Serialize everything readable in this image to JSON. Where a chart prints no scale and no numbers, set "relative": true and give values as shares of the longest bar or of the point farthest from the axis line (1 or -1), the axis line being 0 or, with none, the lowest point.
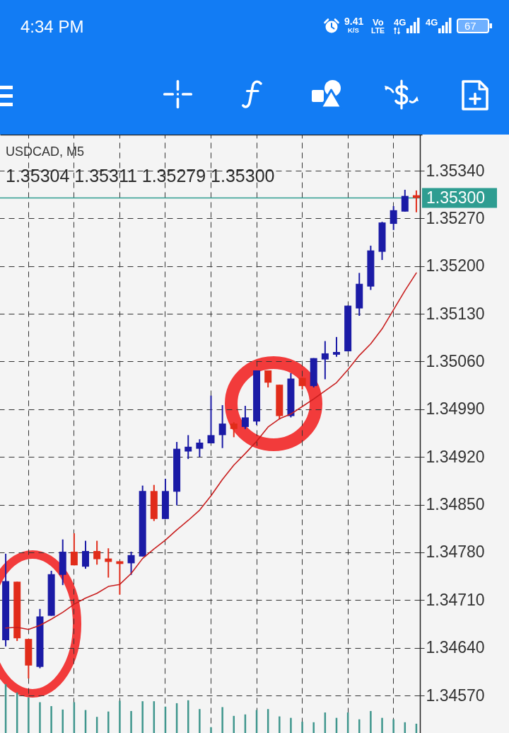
{
  "chart_data": [
    {
      "type": "candlestick",
      "title": "USDCAD, M5",
      "subtitle": "1.35304 1.35311 1.35279 1.35300",
      "categories": [
        null,
        null,
        null,
        null,
        null,
        null,
        null,
        null,
        null,
        null,
        null,
        null,
        null,
        null,
        null,
        null,
        null,
        null,
        null,
        null,
        null,
        null,
        null,
        null,
        null,
        null,
        null,
        null,
        null,
        null,
        null,
        null,
        null,
        null,
        null,
        null,
        null
      ],
      "ohlc": [
        [
          1.34651,
          1.34778,
          1.34642,
          1.34738
        ],
        [
          1.34737,
          1.34737,
          1.3465,
          1.34654
        ],
        [
          1.34653,
          1.34653,
          1.34595,
          1.34614
        ],
        [
          1.34612,
          1.34697,
          1.3461,
          1.34686
        ],
        [
          1.34687,
          1.34753,
          1.34687,
          1.34748
        ],
        [
          1.34747,
          1.34799,
          1.34732,
          1.34781
        ],
        [
          1.34781,
          1.34808,
          1.34761,
          1.34761
        ],
        [
          1.34759,
          1.34797,
          1.34756,
          1.34782
        ],
        [
          1.34782,
          1.34797,
          1.34762,
          1.3477
        ],
        [
          1.34771,
          1.34786,
          1.34743,
          1.34766
        ],
        [
          1.34767,
          1.34767,
          1.34718,
          1.34763
        ],
        [
          1.34764,
          1.34781,
          1.34747,
          1.34776
        ],
        [
          1.34774,
          1.34878,
          1.34774,
          1.3487
        ],
        [
          1.3487,
          1.34879,
          1.34826,
          1.34829
        ],
        [
          1.34829,
          1.34888,
          1.34829,
          1.3487
        ],
        [
          1.34869,
          1.34942,
          1.34849,
          1.34932
        ],
        [
          1.34928,
          1.34952,
          1.34917,
          1.34935
        ],
        [
          1.34932,
          1.34946,
          1.3492,
          1.34941
        ],
        [
          1.3494,
          1.3501,
          1.3494,
          1.34952
        ],
        [
          1.34952,
          1.34996,
          1.34933,
          1.34969
        ],
        [
          1.34969,
          1.34971,
          1.34949,
          1.34961
        ],
        [
          1.34964,
          1.34995,
          1.34961,
          1.34978
        ],
        [
          1.34972,
          1.35047,
          1.34967,
          1.35047
        ],
        [
          1.35047,
          1.35047,
          1.35022,
          1.35029
        ],
        [
          1.35026,
          1.35026,
          1.34975,
          1.3498
        ],
        [
          1.3498,
          1.35043,
          1.34978,
          1.35035
        ],
        [
          1.35036,
          1.35036,
          1.35019,
          1.35024
        ],
        [
          1.35024,
          1.35065,
          1.35022,
          1.35065
        ],
        [
          1.35063,
          1.3509,
          1.35034,
          1.35072
        ],
        [
          1.3507,
          1.35096,
          1.35067,
          1.35074
        ],
        [
          1.35075,
          1.35142,
          1.35075,
          1.35142
        ],
        [
          1.35138,
          1.3519,
          1.35127,
          1.35174
        ],
        [
          1.3517,
          1.3523,
          1.35165,
          1.35223
        ],
        [
          1.35221,
          1.35265,
          1.35209,
          1.35264
        ],
        [
          1.35262,
          1.35288,
          1.35253,
          1.35282
        ],
        [
          1.3528,
          1.35312,
          1.3528,
          1.35303
        ],
        [
          1.35304,
          1.35311,
          1.35279,
          1.353
        ]
      ],
      "colors": [
        "#1b1ba6",
        "#e12c1a",
        "#e12c1a",
        "#1b1ba6",
        "#1b1ba6",
        "#1b1ba6",
        "#e12c1a",
        "#1b1ba6",
        "#e12c1a",
        "#e12c1a",
        "#e12c1a",
        "#1b1ba6",
        "#1b1ba6",
        "#e12c1a",
        "#1b1ba6",
        "#1b1ba6",
        "#1b1ba6",
        "#1b1ba6",
        "#1b1ba6",
        "#1b1ba6",
        "#e12c1a",
        "#1b1ba6",
        "#1b1ba6",
        "#e12c1a",
        "#e12c1a",
        "#1b1ba6",
        "#e12c1a",
        "#1b1ba6",
        "#1b1ba6",
        "#1b1ba6",
        "#1b1ba6",
        "#1b1ba6",
        "#1b1ba6",
        "#1b1ba6",
        "#1b1ba6",
        "#1b1ba6",
        "#e12c1a"
      ],
      "series": [
        {
          "type": "line",
          "color": "#c81e1e",
          "values": [
            1.34669,
            1.3467,
            1.34667,
            1.34673,
            1.34682,
            1.34692,
            1.34704,
            1.34713,
            1.3472,
            1.3473,
            1.34733,
            1.34749,
            1.34771,
            1.34785,
            1.34798,
            1.34813,
            1.34827,
            1.34842,
            1.34863,
            1.34887,
            1.34908,
            1.34925,
            1.34943,
            1.34964,
            1.34976,
            1.34983,
            1.34994,
            1.35005,
            1.35017,
            1.35029,
            1.35048,
            1.35069,
            1.35086,
            1.35108,
            1.35136,
            1.35164,
            1.3519
          ]
        }
      ],
      "ylim": [
        1.34515,
        1.35393
      ],
      "yticks": [
        {
          "value": 1.3457,
          "label": "1.34570"
        },
        {
          "value": 1.3464,
          "label": "1.34640"
        },
        {
          "value": 1.3471,
          "label": "1.34710"
        },
        {
          "value": 1.3478,
          "label": "1.34780"
        },
        {
          "value": 1.3485,
          "label": "1.34850"
        },
        {
          "value": 1.3492,
          "label": "1.34920"
        },
        {
          "value": 1.3499,
          "label": "1.34990"
        },
        {
          "value": 1.3506,
          "label": "1.35060"
        },
        {
          "value": 1.3513,
          "label": "1.35130"
        },
        {
          "value": 1.352,
          "label": "1.35200"
        },
        {
          "value": 1.3527,
          "label": "1.35270"
        },
        {
          "value": 1.3534,
          "label": "1.35340"
        }
      ],
      "ref_lines": [
        {
          "axis": "y",
          "value": 1.353,
          "label": "1.35300",
          "color": "#2e9d91"
        }
      ],
      "grid": true,
      "tick_labels": "y",
      "annotations": [
        "4:34 PM",
        "9.41",
        "K/S",
        "Vo",
        "LTE",
        "4G",
        "4G",
        "67"
      ]
    },
    {
      "type": "bar",
      "categories": [
        null,
        null,
        null,
        null,
        null,
        null,
        null,
        null,
        null,
        null,
        null,
        null,
        null,
        null,
        null,
        null,
        null,
        null,
        null,
        null,
        null,
        null,
        null,
        null,
        null,
        null,
        null,
        null,
        null,
        null,
        null,
        null,
        null,
        null,
        null,
        null,
        null
      ],
      "values": [
        1.0,
        0.83,
        0.73,
        0.63,
        0.55,
        0.48,
        0.63,
        0.47,
        0.33,
        0.44,
        0.66,
        0.45,
        0.65,
        0.65,
        0.54,
        0.61,
        0.67,
        0.49,
        0.12,
        0.53,
        0.35,
        0.38,
        0.47,
        0.49,
        0.34,
        0.31,
        0.23,
        0.22,
        0.42,
        0.31,
        0.42,
        0.28,
        0.45,
        0.31,
        0.28,
        0.22,
        0.19
      ],
      "color": "#3f968d",
      "relative": true,
      "tick_labels": false
    }
  ]
}
